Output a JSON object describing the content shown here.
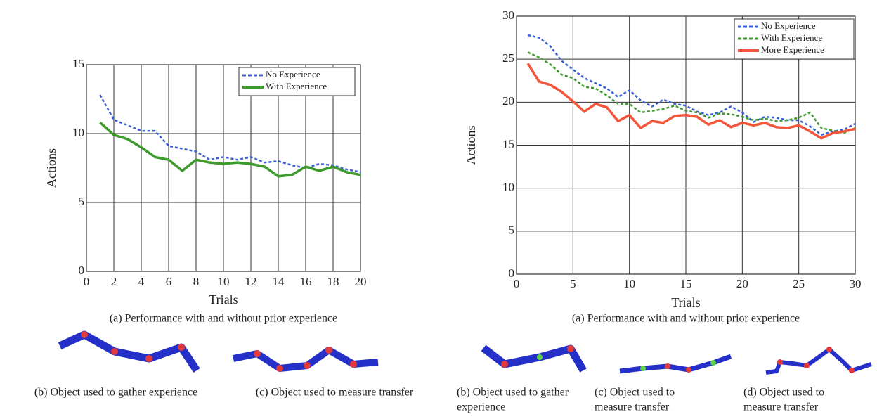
{
  "chart_data": [
    {
      "type": "line",
      "x_label": "Trials",
      "y_label": "Actions",
      "caption": "(a) Performance with and without prior experience",
      "x": [
        1,
        2,
        3,
        4,
        5,
        6,
        7,
        8,
        9,
        10,
        11,
        12,
        13,
        14,
        15,
        16,
        17,
        18,
        19,
        20
      ],
      "xlim": [
        0,
        20
      ],
      "xticks": [
        0,
        2,
        4,
        6,
        8,
        10,
        12,
        14,
        16,
        18,
        20
      ],
      "ylim": [
        0,
        15
      ],
      "yticks": [
        0,
        5,
        10,
        15
      ],
      "grid": true,
      "legend": "upper right",
      "series": [
        {
          "name": "No Experience",
          "color": "#3a5fd6",
          "style": "dashed",
          "values": [
            12.8,
            11.0,
            10.6,
            10.2,
            10.2,
            9.1,
            8.9,
            8.7,
            8.1,
            8.3,
            8.1,
            8.3,
            7.9,
            8.0,
            7.7,
            7.5,
            7.8,
            7.7,
            7.4,
            7.2
          ]
        },
        {
          "name": "With Experience",
          "color": "#3f9a2e",
          "style": "solid",
          "values": [
            10.8,
            9.9,
            9.6,
            9.0,
            8.3,
            8.1,
            7.3,
            8.1,
            7.9,
            7.8,
            7.9,
            7.8,
            7.6,
            6.9,
            7.0,
            7.6,
            7.3,
            7.6,
            7.2,
            7.0
          ]
        }
      ]
    },
    {
      "type": "line",
      "x_label": "Trials",
      "y_label": "Actions",
      "caption": "(a) Performance with and without prior experience",
      "x": [
        1,
        2,
        3,
        4,
        5,
        6,
        7,
        8,
        9,
        10,
        11,
        12,
        13,
        14,
        15,
        16,
        17,
        18,
        19,
        20,
        21,
        22,
        23,
        24,
        25,
        26,
        27,
        28,
        29,
        30
      ],
      "xlim": [
        0,
        30
      ],
      "xticks": [
        0,
        5,
        10,
        15,
        20,
        25,
        30
      ],
      "ylim": [
        0,
        30
      ],
      "yticks": [
        0,
        5,
        10,
        15,
        20,
        25,
        30
      ],
      "grid": true,
      "legend": "upper right",
      "series": [
        {
          "name": "No Experience",
          "color": "#3a5fd6",
          "style": "dashed",
          "values": [
            27.8,
            27.5,
            26.5,
            24.8,
            23.8,
            22.8,
            22.2,
            21.6,
            20.6,
            21.4,
            20.2,
            19.5,
            20.3,
            19.8,
            19.6,
            18.9,
            18.5,
            18.8,
            19.5,
            18.8,
            17.7,
            18.3,
            18.2,
            17.9,
            17.9,
            17.2,
            16.2,
            16.6,
            16.8,
            17.5
          ]
        },
        {
          "name": "With Experience",
          "color": "#3f9a2e",
          "style": "dashed",
          "values": [
            25.8,
            25.2,
            24.4,
            23.2,
            22.8,
            21.8,
            21.6,
            20.8,
            19.8,
            19.8,
            18.8,
            19.0,
            19.2,
            19.6,
            19.0,
            18.8,
            18.2,
            18.7,
            18.6,
            18.3,
            17.9,
            18.1,
            17.8,
            17.9,
            18.2,
            18.8,
            17.0,
            16.7,
            16.4,
            17.0
          ]
        },
        {
          "name": "More Experience",
          "color": "#f4553a",
          "style": "solid",
          "values": [
            24.5,
            22.4,
            22.0,
            21.2,
            20.1,
            18.9,
            19.8,
            19.4,
            17.8,
            18.5,
            17.0,
            17.8,
            17.6,
            18.4,
            18.5,
            18.3,
            17.4,
            17.9,
            17.1,
            17.6,
            17.3,
            17.6,
            17.1,
            17.0,
            17.3,
            16.6,
            15.8,
            16.4,
            16.6,
            16.9
          ]
        }
      ]
    }
  ],
  "panels": [
    {
      "lines": [
        "(b) Object used to gather experience"
      ]
    },
    {
      "lines": [
        "(c) Object used to measure transfer"
      ]
    },
    {
      "lines": [
        "(b) Object used to gather",
        "experience"
      ]
    },
    {
      "lines": [
        "(c) Object used to",
        "measure transfer"
      ]
    },
    {
      "lines": [
        "(d) Object used to",
        "measure transfer"
      ]
    }
  ]
}
